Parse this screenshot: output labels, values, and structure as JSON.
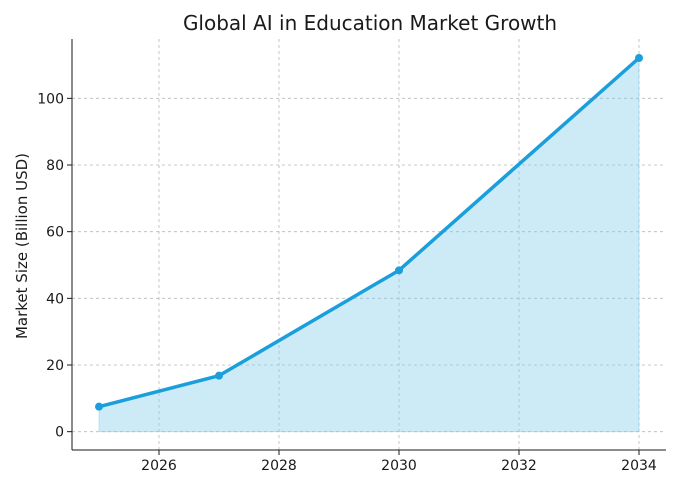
{
  "chart_data": {
    "type": "area",
    "title": "Global AI in Education Market Growth",
    "xlabel": "",
    "ylabel": "Market Size (Billion USD)",
    "xlim": [
      2024.55,
      2034.45
    ],
    "ylim": [
      -5.5,
      117.8
    ],
    "xticks": [
      2026,
      2028,
      2030,
      2032,
      2034
    ],
    "yticks": [
      0,
      20,
      40,
      60,
      80,
      100
    ],
    "grid": true,
    "series": [
      {
        "name": "Market Size",
        "x": [
          2025,
          2027,
          2030,
          2034
        ],
        "values": [
          7.5,
          16.8,
          48.4,
          112.1
        ],
        "color": "#1a9fdc",
        "fill_color": "#87ceeb"
      }
    ]
  }
}
